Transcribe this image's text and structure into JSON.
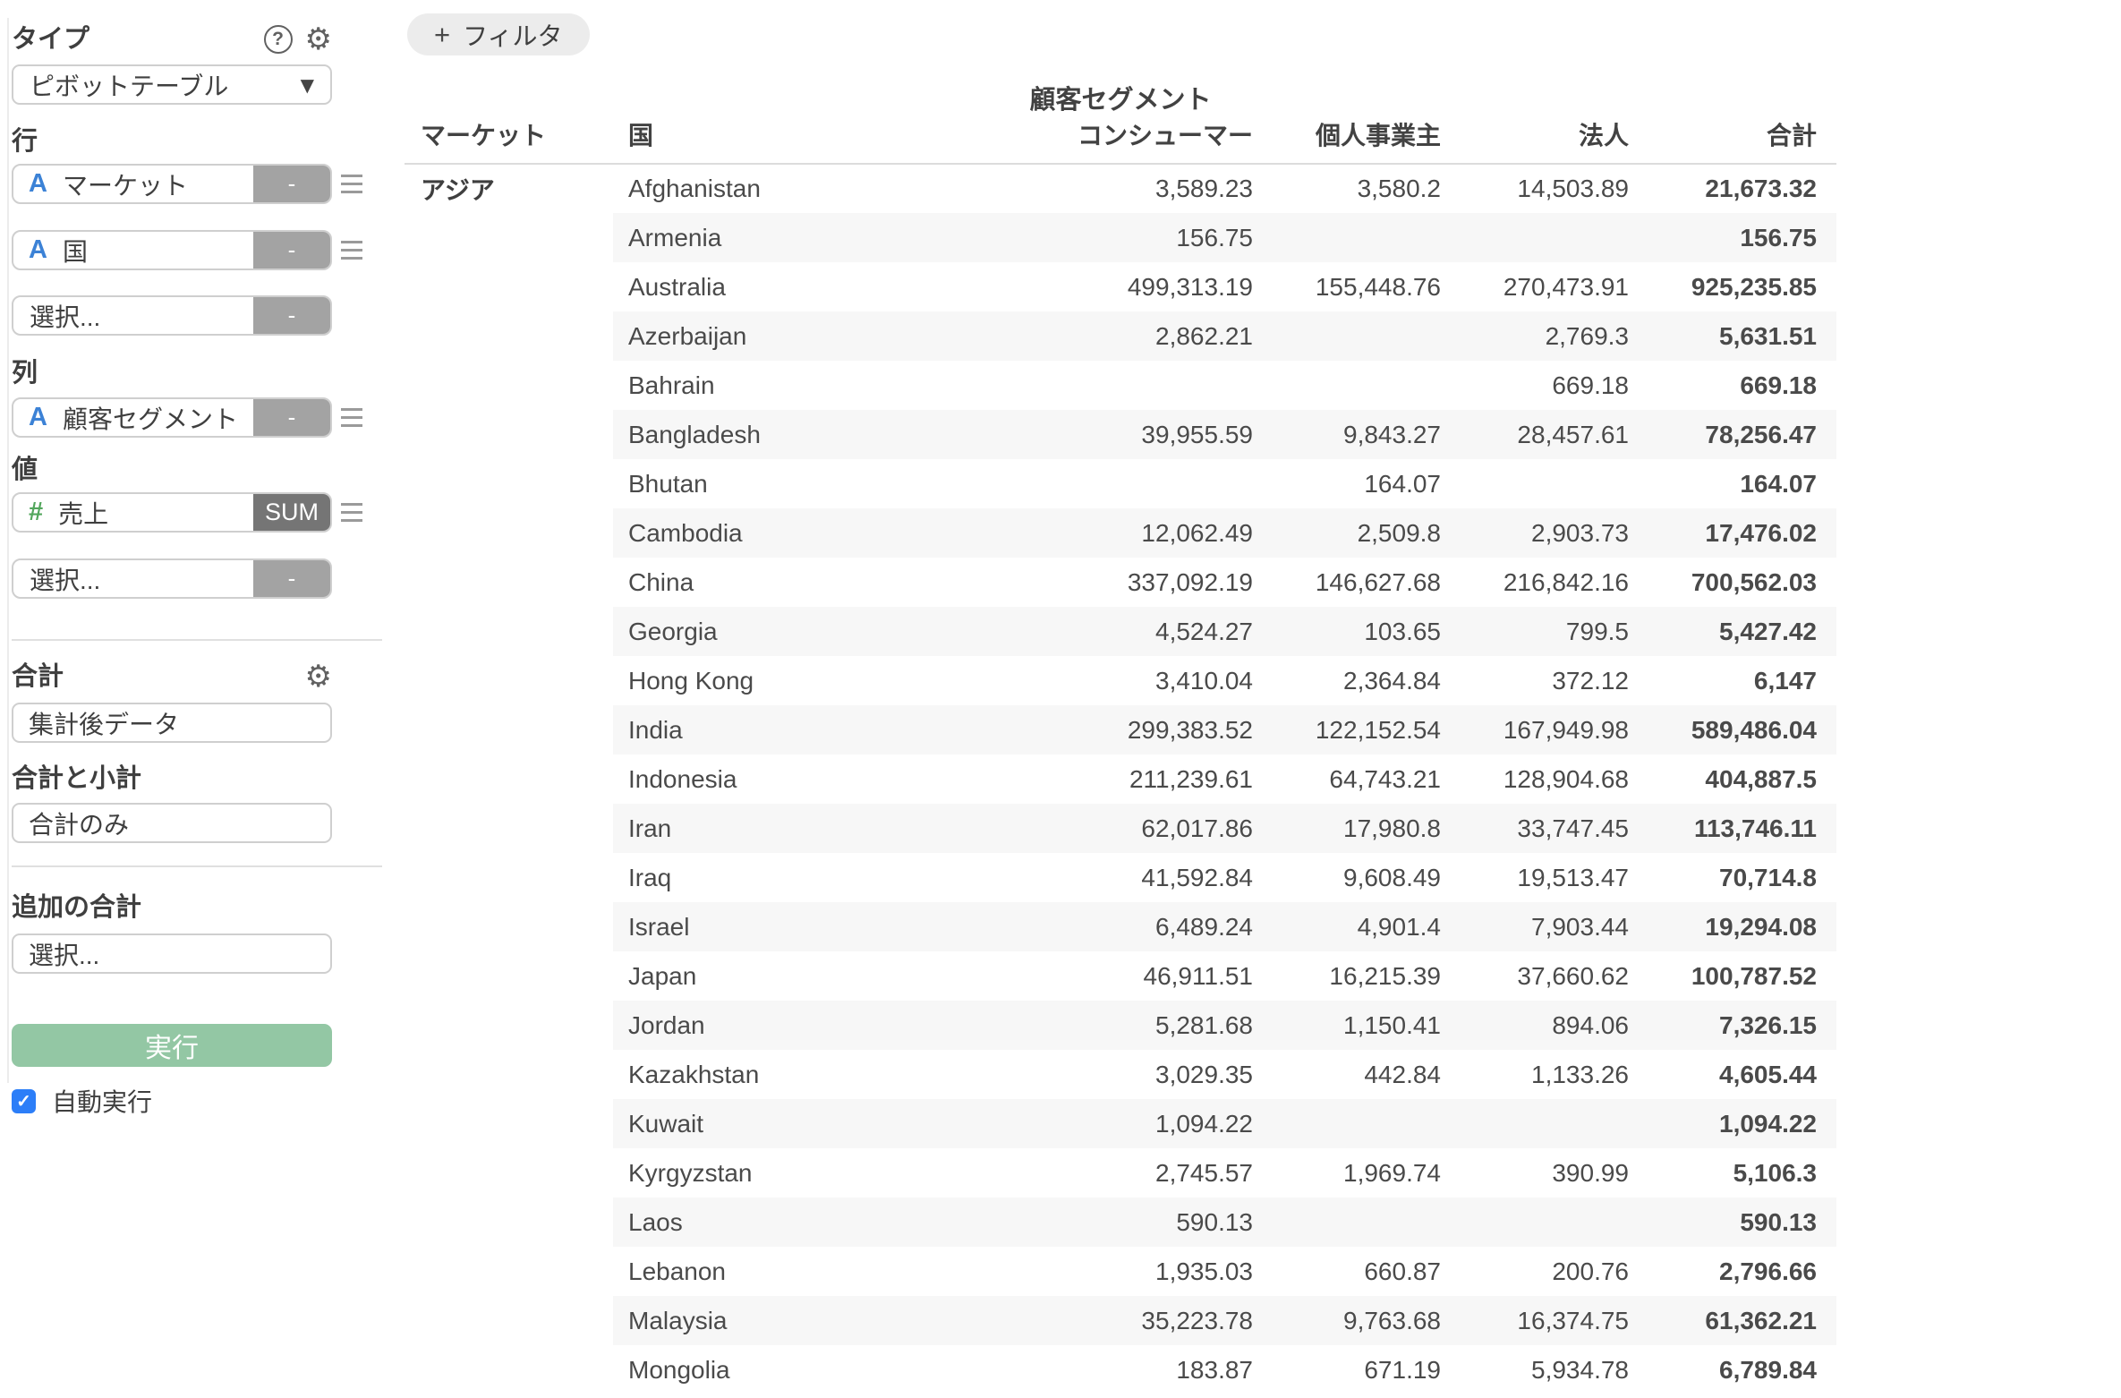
{
  "icons": {
    "help": "?",
    "gear": "⚙",
    "caret": "▼",
    "plus": "+",
    "check": "✓"
  },
  "sidebar": {
    "type_section": {
      "label": "タイプ",
      "value": "ピボットテーブル"
    },
    "rows_section": {
      "label": "行",
      "fields": [
        {
          "icon": "A",
          "label": "マーケット",
          "action": "-"
        },
        {
          "icon": "A",
          "label": "国",
          "action": "-"
        }
      ],
      "placeholder": {
        "label": "選択...",
        "action": "-"
      }
    },
    "columns_section": {
      "label": "列",
      "fields": [
        {
          "icon": "A",
          "label": "顧客セグメント",
          "action": "-"
        }
      ]
    },
    "values_section": {
      "label": "値",
      "fields": [
        {
          "icon": "#",
          "label": "売上",
          "action": "SUM"
        }
      ],
      "placeholder": {
        "label": "選択...",
        "action": "-"
      }
    },
    "totals_section": {
      "label": "合計",
      "value": "集計後データ"
    },
    "subtotals_section": {
      "label": "合計と小計",
      "value": "合計のみ"
    },
    "additional_totals_section": {
      "label": "追加の合計",
      "placeholder": "選択..."
    },
    "run_button": "実行",
    "auto_run": {
      "label": "自動実行",
      "checked": true
    }
  },
  "main": {
    "filter_button": {
      "plus": "+",
      "label": "フィルタ"
    },
    "table": {
      "group_header": "顧客セグメント",
      "columns": [
        "マーケット",
        "国",
        "コンシューマー",
        "個人事業主",
        "法人",
        "合計"
      ],
      "market_label": "アジア",
      "rows": [
        [
          "Afghanistan",
          "3,589.23",
          "3,580.2",
          "14,503.89",
          "21,673.32"
        ],
        [
          "Armenia",
          "156.75",
          "",
          "",
          "156.75"
        ],
        [
          "Australia",
          "499,313.19",
          "155,448.76",
          "270,473.91",
          "925,235.85"
        ],
        [
          "Azerbaijan",
          "2,862.21",
          "",
          "2,769.3",
          "5,631.51"
        ],
        [
          "Bahrain",
          "",
          "",
          "669.18",
          "669.18"
        ],
        [
          "Bangladesh",
          "39,955.59",
          "9,843.27",
          "28,457.61",
          "78,256.47"
        ],
        [
          "Bhutan",
          "",
          "164.07",
          "",
          "164.07"
        ],
        [
          "Cambodia",
          "12,062.49",
          "2,509.8",
          "2,903.73",
          "17,476.02"
        ],
        [
          "China",
          "337,092.19",
          "146,627.68",
          "216,842.16",
          "700,562.03"
        ],
        [
          "Georgia",
          "4,524.27",
          "103.65",
          "799.5",
          "5,427.42"
        ],
        [
          "Hong Kong",
          "3,410.04",
          "2,364.84",
          "372.12",
          "6,147"
        ],
        [
          "India",
          "299,383.52",
          "122,152.54",
          "167,949.98",
          "589,486.04"
        ],
        [
          "Indonesia",
          "211,239.61",
          "64,743.21",
          "128,904.68",
          "404,887.5"
        ],
        [
          "Iran",
          "62,017.86",
          "17,980.8",
          "33,747.45",
          "113,746.11"
        ],
        [
          "Iraq",
          "41,592.84",
          "9,608.49",
          "19,513.47",
          "70,714.8"
        ],
        [
          "Israel",
          "6,489.24",
          "4,901.4",
          "7,903.44",
          "19,294.08"
        ],
        [
          "Japan",
          "46,911.51",
          "16,215.39",
          "37,660.62",
          "100,787.52"
        ],
        [
          "Jordan",
          "5,281.68",
          "1,150.41",
          "894.06",
          "7,326.15"
        ],
        [
          "Kazakhstan",
          "3,029.35",
          "442.84",
          "1,133.26",
          "4,605.44"
        ],
        [
          "Kuwait",
          "1,094.22",
          "",
          "",
          "1,094.22"
        ],
        [
          "Kyrgyzstan",
          "2,745.57",
          "1,969.74",
          "390.99",
          "5,106.3"
        ],
        [
          "Laos",
          "590.13",
          "",
          "",
          "590.13"
        ],
        [
          "Lebanon",
          "1,935.03",
          "660.87",
          "200.76",
          "2,796.66"
        ],
        [
          "Malaysia",
          "35,223.78",
          "9,763.68",
          "16,374.75",
          "61,362.21"
        ],
        [
          "Mongolia",
          "183.87",
          "671.19",
          "5,934.78",
          "6,789.84"
        ]
      ]
    }
  },
  "colors": {
    "run_green": "#93c7a4",
    "checkbox_blue": "#2c7ef8",
    "field_icon_blue": "#3c82d6",
    "field_icon_green": "#52a65c",
    "stripe_gray": "#f7f7f7",
    "action_gray": "#a3a3a3",
    "sum_gray": "#757575"
  }
}
